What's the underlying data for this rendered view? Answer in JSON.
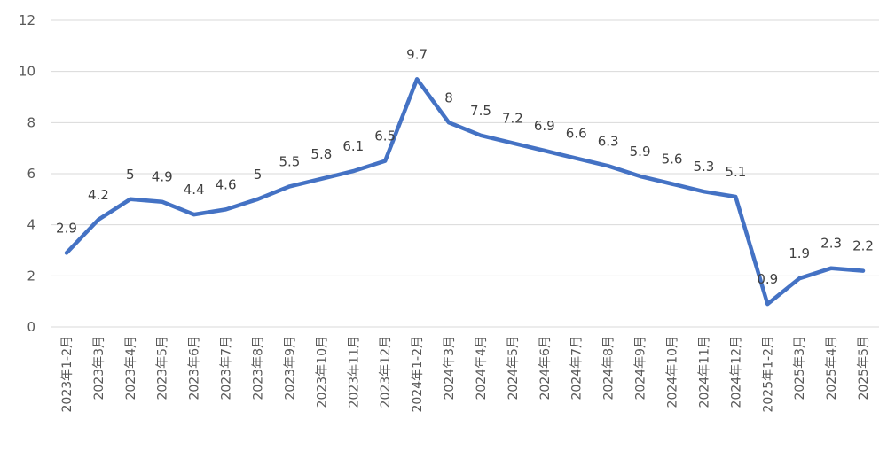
{
  "chart_data": {
    "type": "line",
    "title": "",
    "xlabel": "",
    "ylabel": "",
    "ylim": [
      0,
      12
    ],
    "y_ticks": [
      0,
      2,
      4,
      6,
      8,
      10,
      12
    ],
    "grid": "horizontal",
    "legend": "none",
    "line_color": "#4472c4",
    "categories": [
      "2023年1-2月",
      "2023年3月",
      "2023年4月",
      "2023年5月",
      "2023年6月",
      "2023年7月",
      "2023年8月",
      "2023年9月",
      "2023年10月",
      "2023年11月",
      "2023年12月",
      "2024年1-2月",
      "2024年3月",
      "2024年4月",
      "2024年5月",
      "2024年6月",
      "2024年7月",
      "2024年8月",
      "2024年9月",
      "2024年10月",
      "2024年11月",
      "2024年12月",
      "2025年1-2月",
      "2025年3月",
      "2025年4月",
      "2025年5月"
    ],
    "values": [
      2.9,
      4.2,
      5,
      4.9,
      4.4,
      4.6,
      5,
      5.5,
      5.8,
      6.1,
      6.5,
      9.7,
      8,
      7.5,
      7.2,
      6.9,
      6.6,
      6.3,
      5.9,
      5.6,
      5.3,
      5.1,
      0.9,
      1.9,
      2.3,
      2.2
    ],
    "data_labels": [
      "2.9",
      "4.2",
      "5",
      "4.9",
      "4.4",
      "4.6",
      "5",
      "5.5",
      "5.8",
      "6.1",
      "6.5",
      "9.7",
      "8",
      "7.5",
      "7.2",
      "6.9",
      "6.6",
      "6.3",
      "5.9",
      "5.6",
      "5.3",
      "5.1",
      "0.9",
      "1.9",
      "2.3",
      "2.2"
    ]
  }
}
